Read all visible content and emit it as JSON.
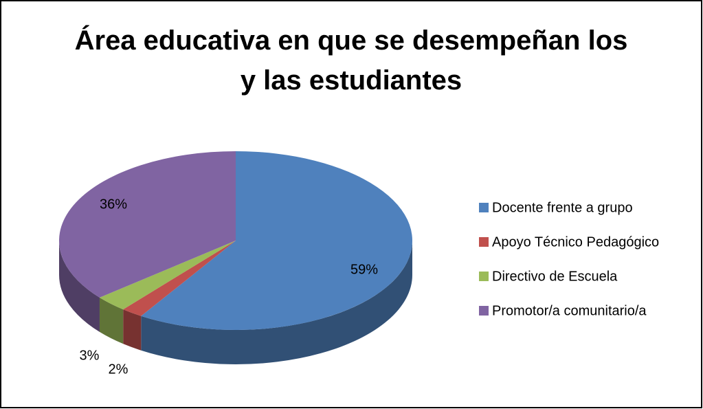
{
  "chart_data": {
    "type": "pie3d",
    "title": "Área educativa en que se desempeñan los y las estudiantes",
    "categories": [
      "Docente frente a grupo",
      "Apoyo Técnico Pedagógico",
      "Directivo de Escuela",
      "Promotor/a comunitario/a"
    ],
    "values": [
      59,
      2,
      3,
      36
    ],
    "value_labels": [
      "59%",
      "2%",
      "3%",
      "36%"
    ],
    "colors": [
      "#4f81bd",
      "#c0504d",
      "#9bbb59",
      "#8064a2"
    ],
    "legend": "right"
  }
}
